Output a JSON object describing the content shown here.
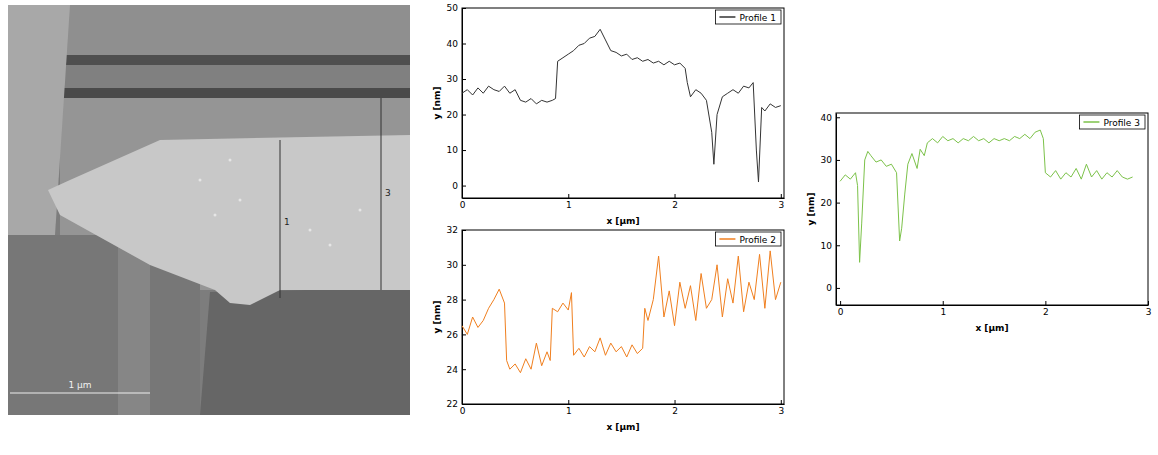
{
  "afm_image": {
    "scale_bar": "1 µm",
    "profile_labels": [
      "1",
      "3"
    ]
  },
  "chart_data": [
    {
      "type": "line",
      "xlabel": "x [µm]",
      "ylabel": "y [nm]",
      "xlim": [
        0,
        3.03
      ],
      "xticks": [
        0,
        1,
        2,
        3
      ],
      "ylim": [
        -3.5,
        50
      ],
      "yticks": [
        0,
        10,
        20,
        30,
        40,
        50
      ],
      "legend": "upper right",
      "x": [
        0,
        0.05,
        0.1,
        0.15,
        0.2,
        0.25,
        0.3,
        0.35,
        0.4,
        0.45,
        0.5,
        0.55,
        0.6,
        0.65,
        0.7,
        0.75,
        0.8,
        0.85,
        0.88,
        0.9,
        0.95,
        1.0,
        1.05,
        1.1,
        1.15,
        1.2,
        1.25,
        1.3,
        1.35,
        1.4,
        1.45,
        1.5,
        1.55,
        1.6,
        1.65,
        1.7,
        1.75,
        1.8,
        1.85,
        1.9,
        1.95,
        2.0,
        2.05,
        2.1,
        2.12,
        2.15,
        2.2,
        2.25,
        2.3,
        2.35,
        2.37,
        2.4,
        2.45,
        2.5,
        2.55,
        2.6,
        2.65,
        2.7,
        2.74,
        2.77,
        2.79,
        2.82,
        2.85,
        2.9,
        2.95,
        3.0
      ],
      "series": [
        {
          "name": "Profile 1",
          "color": "#333333",
          "values": [
            26,
            27,
            25.5,
            27.5,
            26,
            28,
            27,
            26.5,
            28,
            26,
            27,
            24,
            23.5,
            24.5,
            23,
            24,
            23.5,
            24,
            24.5,
            35,
            36,
            37,
            38,
            39.5,
            40,
            41.5,
            42,
            44,
            41,
            38,
            37.5,
            36.5,
            37,
            35.5,
            36,
            35,
            35.5,
            34.5,
            35,
            34,
            35,
            34,
            34.5,
            33,
            29,
            25,
            27,
            26,
            24,
            15,
            6,
            20,
            25,
            26,
            27,
            26,
            28,
            27.5,
            29,
            10,
            1,
            22,
            21,
            23,
            22,
            22.5
          ]
        }
      ]
    },
    {
      "type": "line",
      "xlabel": "x [µm]",
      "ylabel": "y [nm]",
      "xlim": [
        0,
        3.03
      ],
      "xticks": [
        0,
        1,
        2,
        3
      ],
      "ylim": [
        22,
        32
      ],
      "yticks": [
        22,
        24,
        26,
        28,
        30,
        32
      ],
      "legend": "upper right",
      "x": [
        0,
        0.05,
        0.1,
        0.15,
        0.2,
        0.25,
        0.3,
        0.35,
        0.4,
        0.42,
        0.45,
        0.5,
        0.55,
        0.6,
        0.65,
        0.7,
        0.75,
        0.8,
        0.83,
        0.85,
        0.9,
        0.95,
        1.0,
        1.03,
        1.05,
        1.1,
        1.15,
        1.2,
        1.25,
        1.3,
        1.35,
        1.4,
        1.45,
        1.5,
        1.55,
        1.6,
        1.65,
        1.7,
        1.72,
        1.75,
        1.8,
        1.85,
        1.9,
        1.95,
        2.0,
        2.05,
        2.1,
        2.15,
        2.2,
        2.25,
        2.3,
        2.35,
        2.4,
        2.45,
        2.5,
        2.55,
        2.6,
        2.65,
        2.7,
        2.75,
        2.8,
        2.85,
        2.9,
        2.95,
        3.0
      ],
      "series": [
        {
          "name": "Profile 2",
          "color": "#f07f1f",
          "values": [
            26.5,
            26,
            27,
            26.4,
            26.8,
            27.5,
            28,
            28.6,
            27.8,
            24.5,
            24,
            24.3,
            23.8,
            24.6,
            24,
            25.5,
            24.2,
            25,
            24.5,
            27.5,
            27.3,
            27.8,
            27.4,
            28.4,
            24.8,
            25.2,
            24.7,
            25.3,
            25,
            25.8,
            24.8,
            25.5,
            25,
            25.3,
            24.7,
            25.4,
            24.9,
            25.2,
            27.5,
            26.8,
            28,
            30.5,
            27,
            28.5,
            26.5,
            29,
            27.5,
            28.8,
            26.8,
            29.5,
            27.5,
            28,
            30,
            27,
            29.2,
            27.8,
            30.5,
            27.3,
            29,
            28,
            30.6,
            27.5,
            30.8,
            28,
            29
          ]
        }
      ]
    },
    {
      "type": "line",
      "xlabel": "x [µm]",
      "ylabel": "y [nm]",
      "xlim": [
        -0.04,
        3.0
      ],
      "xticks": [
        0,
        1,
        2,
        3
      ],
      "ylim": [
        -4,
        41
      ],
      "yticks": [
        0,
        10,
        20,
        30,
        40
      ],
      "legend": "upper right",
      "x": [
        0,
        0.05,
        0.1,
        0.15,
        0.17,
        0.19,
        0.21,
        0.24,
        0.27,
        0.3,
        0.35,
        0.4,
        0.45,
        0.5,
        0.55,
        0.58,
        0.6,
        0.63,
        0.66,
        0.7,
        0.75,
        0.78,
        0.82,
        0.85,
        0.9,
        0.95,
        1.0,
        1.05,
        1.1,
        1.15,
        1.2,
        1.25,
        1.3,
        1.35,
        1.4,
        1.45,
        1.5,
        1.55,
        1.6,
        1.65,
        1.7,
        1.75,
        1.8,
        1.85,
        1.9,
        1.95,
        1.98,
        2.0,
        2.05,
        2.1,
        2.15,
        2.2,
        2.25,
        2.3,
        2.35,
        2.4,
        2.45,
        2.5,
        2.55,
        2.6,
        2.65,
        2.7,
        2.75,
        2.8,
        2.85
      ],
      "series": [
        {
          "name": "Profile 3",
          "color": "#7cc24a",
          "values": [
            25,
            26.5,
            25.5,
            27,
            24,
            6,
            15,
            30,
            32,
            31,
            29.5,
            30,
            28.5,
            29,
            27,
            11,
            14,
            22,
            29,
            31.5,
            28,
            32.5,
            31,
            34,
            35,
            34,
            35.5,
            34.5,
            35,
            34,
            35,
            34.5,
            35.5,
            34.5,
            35,
            34,
            35,
            34.5,
            35,
            34.5,
            35.5,
            35,
            36,
            35,
            36.5,
            37,
            35,
            27,
            26,
            27.5,
            25.5,
            27,
            26,
            28,
            25.5,
            29,
            26,
            27.5,
            25.5,
            27,
            26,
            27.5,
            26,
            25.5,
            26
          ]
        }
      ]
    }
  ]
}
